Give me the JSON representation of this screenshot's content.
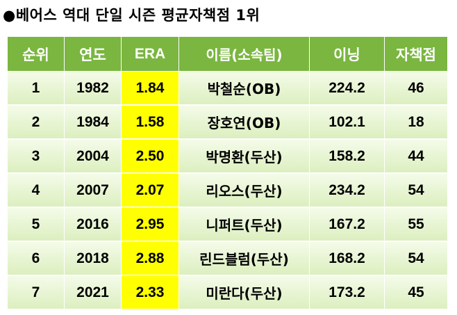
{
  "title": "●베어스 역대 단일 시즌 평균자책점 1위",
  "headers": [
    "순위",
    "연도",
    "ERA",
    "이름(소속팀)",
    "이닝",
    "자책점"
  ],
  "rows": [
    {
      "rank": "1",
      "year": "1982",
      "era": "1.84",
      "name": "박철순(OB)",
      "innings": "224.2",
      "er": "46"
    },
    {
      "rank": "2",
      "year": "1984",
      "era": "1.58",
      "name": "장호연(OB)",
      "innings": "102.1",
      "er": "18"
    },
    {
      "rank": "3",
      "year": "2004",
      "era": "2.50",
      "name": "박명환(두산)",
      "innings": "158.2",
      "er": "44"
    },
    {
      "rank": "4",
      "year": "2007",
      "era": "2.07",
      "name": "리오스(두산)",
      "innings": "234.2",
      "er": "54"
    },
    {
      "rank": "5",
      "year": "2016",
      "era": "2.95",
      "name": "니퍼트(두산)",
      "innings": "167.2",
      "er": "55"
    },
    {
      "rank": "6",
      "year": "2018",
      "era": "2.88",
      "name": "린드블럼(두산)",
      "innings": "168.2",
      "er": "54"
    },
    {
      "rank": "7",
      "year": "2021",
      "era": "2.33",
      "name": "미란다(두산)",
      "innings": "173.2",
      "er": "45"
    }
  ],
  "colors": {
    "header_bg": "#7ab640",
    "era_highlight": "#ffff00",
    "row_bg": "#e6f4d0"
  }
}
